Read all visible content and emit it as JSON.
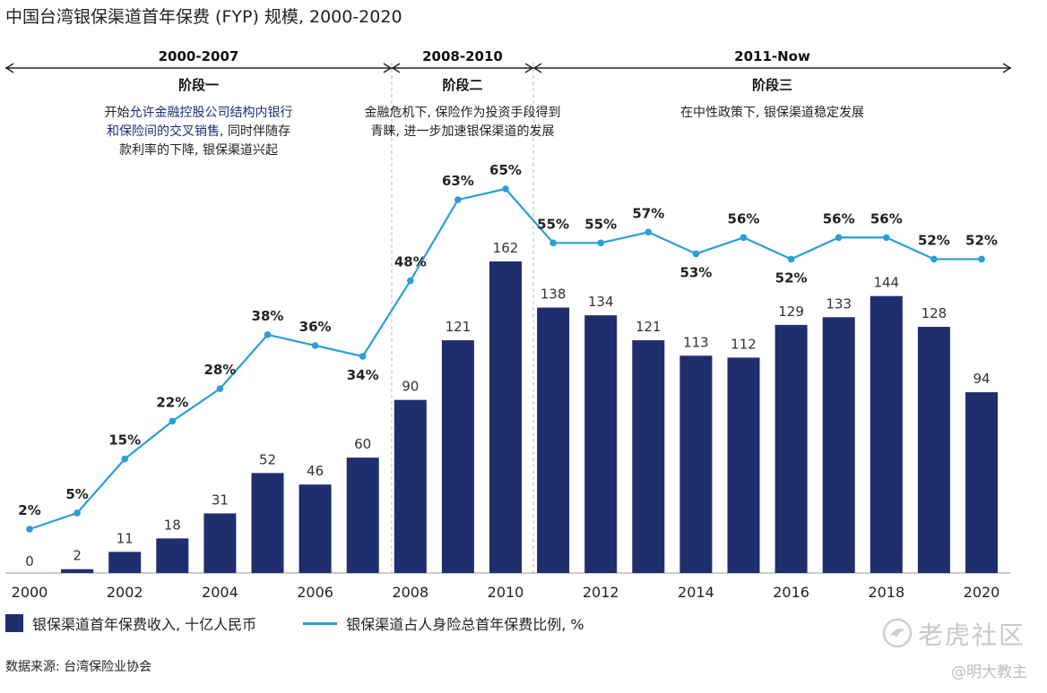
{
  "title": "中国台湾银保渠道首年保费 (FYP) 规模, 2000-2020",
  "colors": {
    "bar": "#1f2e6e",
    "line": "#2a9fd6",
    "divider": "#bbbbbb",
    "highlight": "#1c2f7a"
  },
  "phases": [
    {
      "range": "2000-2007",
      "name": "阶段一",
      "desc_lines": [
        [
          "开始",
          "允许金融控股公司结构内银行"
        ],
        [
          "和保险间的交叉销售",
          ", 同时伴随存"
        ],
        [
          "款利率的下降, 银保渠道兴起"
        ]
      ]
    },
    {
      "range": "2008-2010",
      "name": "阶段二",
      "desc_lines": [
        [
          "金融危机下, 保险作为投资手段得到"
        ],
        [
          "青睐, 进一步加速银保渠道的发展"
        ]
      ]
    },
    {
      "range": "2011-Now",
      "name": "阶段三",
      "desc_lines": [
        [
          "在中性政策下, 银保渠道稳定发展"
        ]
      ]
    }
  ],
  "chart_data": {
    "type": "bar",
    "x": [
      2000,
      2001,
      2002,
      2003,
      2004,
      2005,
      2006,
      2007,
      2008,
      2009,
      2010,
      2011,
      2012,
      2013,
      2014,
      2015,
      2016,
      2017,
      2018,
      2019,
      2020
    ],
    "x_tick_labels": [
      "2000",
      "2002",
      "2004",
      "2006",
      "2008",
      "2010",
      "2012",
      "2014",
      "2016",
      "2018",
      "2020"
    ],
    "series": [
      {
        "name": "银保渠道首年保费收入, 十亿人民币",
        "type": "bar",
        "values": [
          0,
          2,
          11,
          18,
          31,
          52,
          46,
          60,
          90,
          121,
          162,
          138,
          134,
          121,
          113,
          112,
          129,
          133,
          144,
          128,
          94
        ]
      },
      {
        "name": "银保渠道占人身险总首年保费比例, %",
        "type": "line",
        "values": [
          2,
          5,
          15,
          22,
          28,
          38,
          36,
          34,
          48,
          63,
          65,
          55,
          55,
          57,
          53,
          56,
          52,
          56,
          56,
          52,
          52
        ],
        "labels": [
          "2%",
          "5%",
          "15%",
          "22%",
          "28%",
          "38%",
          "36%",
          "34%",
          "48%",
          "63%",
          "65%",
          "55%",
          "55%",
          "57%",
          "53%",
          "56%",
          "52%",
          "56%",
          "56%",
          "52%",
          "52%"
        ]
      }
    ],
    "ylim_bar": [
      0,
      162
    ],
    "ylim_line": [
      2,
      65
    ],
    "grid": false,
    "legend": "bottom-left"
  },
  "source": "数据来源: 台湾保险业协会",
  "watermark": {
    "main": "老虎社区",
    "sub": "@明大教主"
  }
}
